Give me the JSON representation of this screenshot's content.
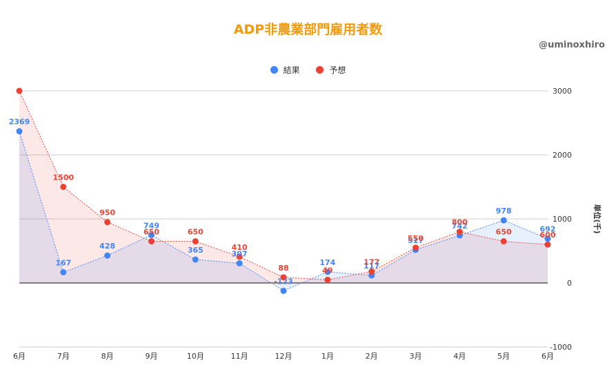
{
  "watermark": "@uminoxhiro",
  "chart_data": {
    "type": "area",
    "title": "ADP非農業部門雇用者数",
    "ylabel": "単位(千)",
    "xlabel": "",
    "categories": [
      "6月",
      "7月",
      "8月",
      "9月",
      "10月",
      "11月",
      "12月",
      "1月",
      "2月",
      "3月",
      "4月",
      "5月",
      "6月"
    ],
    "ylim": [
      -1000,
      3000
    ],
    "yticks": [
      -1000,
      0,
      1000,
      2000,
      3000
    ],
    "grid": true,
    "legend_position": "top",
    "series": [
      {
        "name": "結果",
        "color": "#4285f4",
        "values": [
          2369,
          167,
          428,
          749,
          365,
          307,
          -123,
          174,
          117,
          517,
          742,
          978,
          692
        ]
      },
      {
        "name": "予想",
        "color": "#ea4335",
        "values": [
          3000,
          1500,
          950,
          650,
          650,
          410,
          88,
          49,
          177,
          550,
          800,
          650,
          600
        ]
      }
    ]
  }
}
